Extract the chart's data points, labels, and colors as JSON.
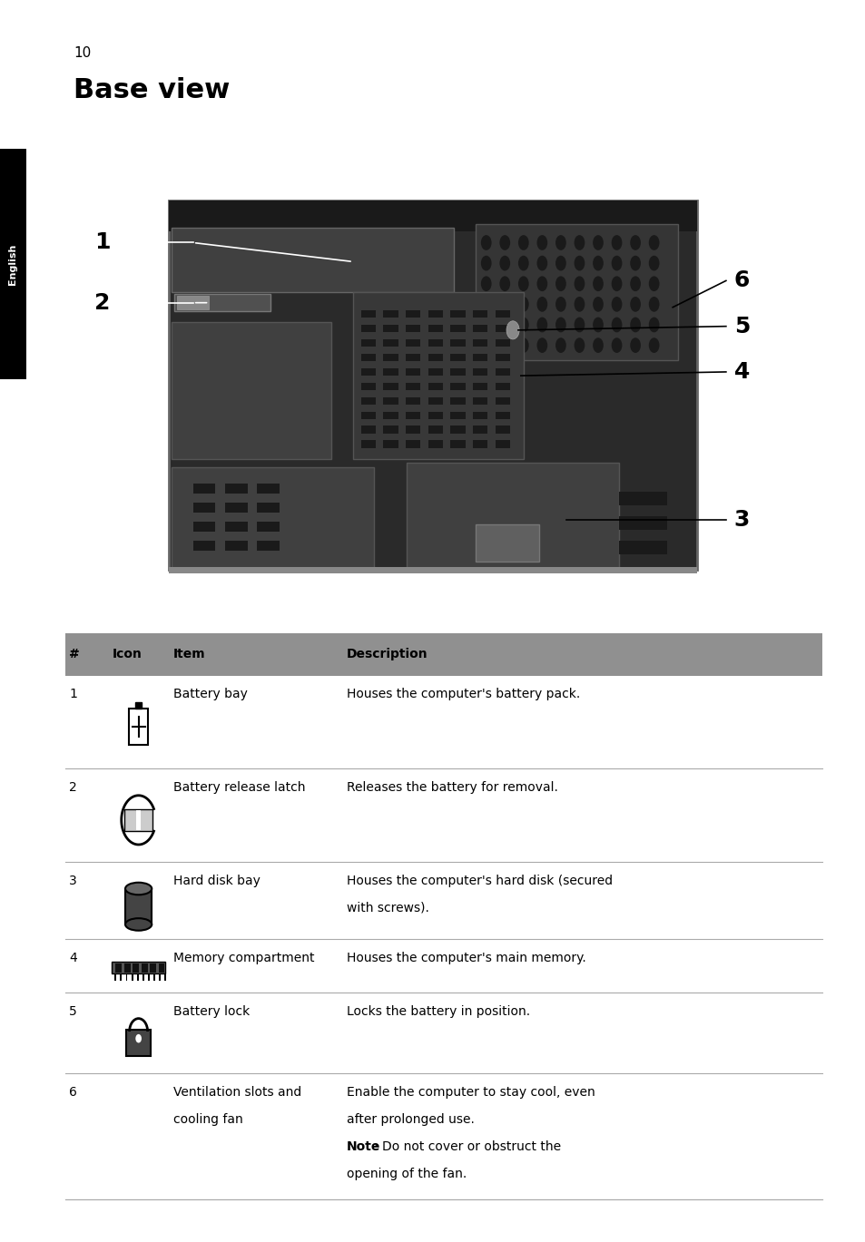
{
  "page_number": "10",
  "title": "Base view",
  "sidebar_text": "English",
  "sidebar_bg": "#000000",
  "sidebar_text_color": "#ffffff",
  "bg_color": "#ffffff",
  "table_header": [
    "#",
    "Icon",
    "Item",
    "Description"
  ],
  "table_rows": [
    {
      "num": "1",
      "item": "Battery bay",
      "description": "Houses the computer's battery pack.",
      "icon": "battery"
    },
    {
      "num": "2",
      "item": "Battery release latch",
      "description": "Releases the battery for removal.",
      "icon": "latch"
    },
    {
      "num": "3",
      "item": "Hard disk bay",
      "description": "Houses the computer's hard disk (secured\nwith screws).",
      "icon": "harddisk"
    },
    {
      "num": "4",
      "item": "Memory compartment",
      "description": "Houses the computer's main memory.",
      "icon": "memory"
    },
    {
      "num": "5",
      "item": "Battery lock",
      "description": "Locks the battery in position.",
      "icon": "lock"
    },
    {
      "num": "6",
      "item": "Ventilation slots and\ncooling fan",
      "description": "Enable the computer to stay cool, even\nafter prolonged use.\nNote: Do not cover or obstruct the\nopening of the fan.",
      "icon": "none"
    }
  ]
}
